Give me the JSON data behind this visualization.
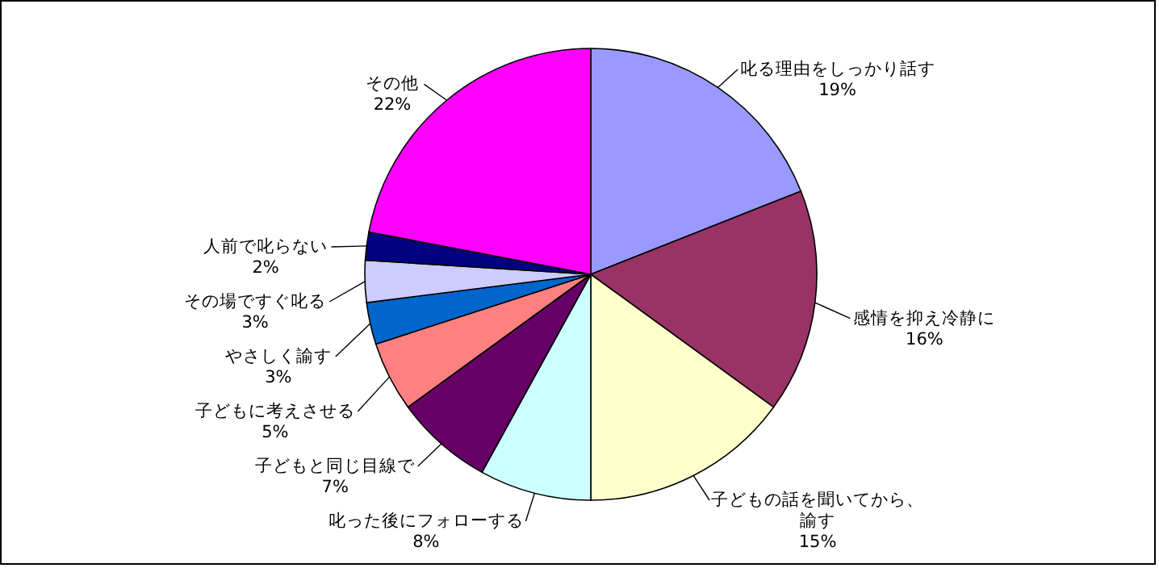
{
  "chart_data": {
    "type": "pie",
    "categories": [
      "叱る理由をしっかり話す",
      "感情を抑え冷静に",
      "子どもの話を聞いてから、諭す",
      "叱った後にフォローする",
      "子どもと同じ目線で",
      "子どもに考えさせる",
      "やさしく諭す",
      "その場ですぐ叱る",
      "人前で叱らない",
      "その他"
    ],
    "values": [
      19,
      16,
      15,
      8,
      7,
      5,
      3,
      3,
      2,
      22
    ],
    "colors": [
      "#9999ff",
      "#993366",
      "#ffffcc",
      "#ccffff",
      "#660066",
      "#ff8080",
      "#0066cc",
      "#ccccff",
      "#000080",
      "#ff00ff"
    ],
    "value_labels": [
      "19%",
      "16%",
      "15%",
      "8%",
      "7%",
      "5%",
      "3%",
      "3%",
      "2%",
      "22%"
    ]
  }
}
